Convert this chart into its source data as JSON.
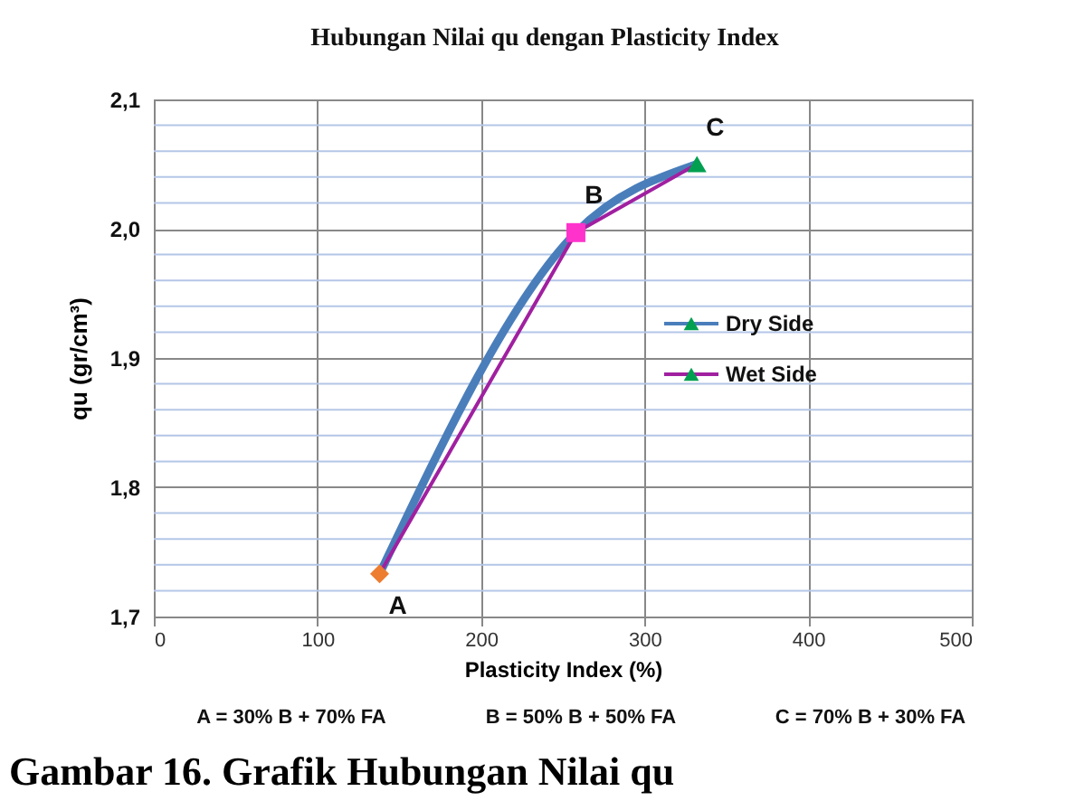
{
  "chart_data": {
    "type": "line",
    "title": "Hubungan Nilai qu dengan Plasticity Index",
    "xlabel": "Plasticity Index (%)",
    "ylabel": "qu (gr/cm³)",
    "xlim": [
      0,
      500
    ],
    "xticks": [
      0,
      100,
      200,
      300,
      400,
      500
    ],
    "ylim": [
      1.7,
      2.1
    ],
    "yticks": [
      {
        "value": 1.7,
        "label": "1,7"
      },
      {
        "value": 1.72,
        "label": null
      },
      {
        "value": 1.74,
        "label": null
      },
      {
        "value": 1.76,
        "label": null
      },
      {
        "value": 1.78,
        "label": null
      },
      {
        "value": 1.8,
        "label": "1,8"
      },
      {
        "value": 1.82,
        "label": null
      },
      {
        "value": 1.84,
        "label": null
      },
      {
        "value": 1.86,
        "label": null
      },
      {
        "value": 1.88,
        "label": null
      },
      {
        "value": 1.9,
        "label": "1,9"
      },
      {
        "value": 1.92,
        "label": null
      },
      {
        "value": 1.94,
        "label": null
      },
      {
        "value": 1.96,
        "label": null
      },
      {
        "value": 1.98,
        "label": null
      },
      {
        "value": 2.0,
        "label": "2,0"
      },
      {
        "value": 2.02,
        "label": null
      },
      {
        "value": 2.04,
        "label": null
      },
      {
        "value": 2.06,
        "label": null
      },
      {
        "value": 2.08,
        "label": null
      },
      {
        "value": 2.1,
        "label": "2,1"
      }
    ],
    "grid": true,
    "legend": "right",
    "marker": "none",
    "series": [
      {
        "name": "Dry Side",
        "color": "#4a7ebb",
        "x": [
          138,
          258,
          332
        ],
        "values": [
          1.733,
          1.997,
          2.05
        ]
      },
      {
        "name": "Wet Side",
        "color": "#a020a0",
        "x": [
          138,
          258,
          332
        ],
        "values": [
          1.733,
          1.997,
          2.05
        ]
      },
      {
        "type": "scatter",
        "marker": "diamond",
        "color": "#ed7d31",
        "x": [
          138
        ],
        "values": [
          1.733
        ]
      },
      {
        "type": "scatter",
        "marker": "square",
        "color": "#ff33cc",
        "x": [
          258
        ],
        "values": [
          1.997
        ]
      },
      {
        "type": "scatter",
        "marker": "triangle",
        "color": "#00a050",
        "x": [
          332
        ],
        "values": [
          2.05
        ]
      }
    ],
    "annotations": [
      {
        "text": "A",
        "x": 138,
        "y": 1.733
      },
      {
        "text": "B",
        "x": 258,
        "y": 1.997
      },
      {
        "text": "C",
        "x": 332,
        "y": 2.05
      },
      "A = 30% B + 70% FA",
      "B = 50% B + 50% FA",
      "C = 70% B + 30% FA",
      "Gambar 16. Grafik Hubungan Nilai qu"
    ]
  }
}
